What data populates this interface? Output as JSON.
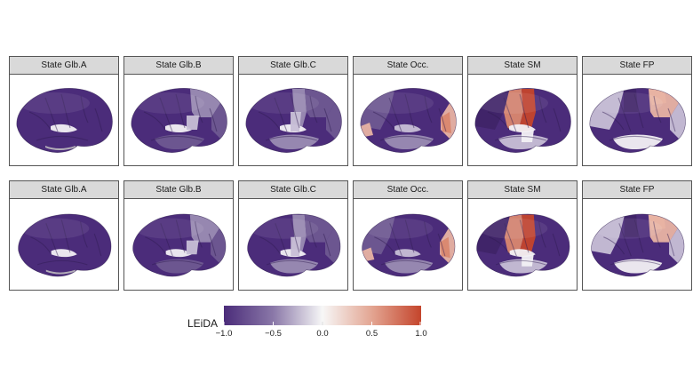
{
  "rows": [
    {
      "panels": [
        {
          "title": "State Glb.A",
          "state": "glb_a"
        },
        {
          "title": "State Glb.B",
          "state": "glb_b"
        },
        {
          "title": "State Glb.C",
          "state": "glb_c"
        },
        {
          "title": "State Occ.",
          "state": "occ"
        },
        {
          "title": "State SM",
          "state": "sm"
        },
        {
          "title": "State FP",
          "state": "fp"
        }
      ]
    },
    {
      "panels": [
        {
          "title": "State Glb.A",
          "state": "glb_a"
        },
        {
          "title": "State Glb.B",
          "state": "glb_b"
        },
        {
          "title": "State Glb.C",
          "state": "glb_c"
        },
        {
          "title": "State Occ.",
          "state": "occ"
        },
        {
          "title": "State SM",
          "state": "sm"
        },
        {
          "title": "State FP",
          "state": "fp"
        }
      ]
    }
  ],
  "legend": {
    "title": "LEiDA",
    "ticks": [
      "−1.0",
      "−0.5",
      "0.0",
      "0.5",
      "1.0"
    ],
    "colors": {
      "low": "#4b2c7a",
      "mid": "#f7f7f7",
      "high": "#c4452c"
    }
  }
}
